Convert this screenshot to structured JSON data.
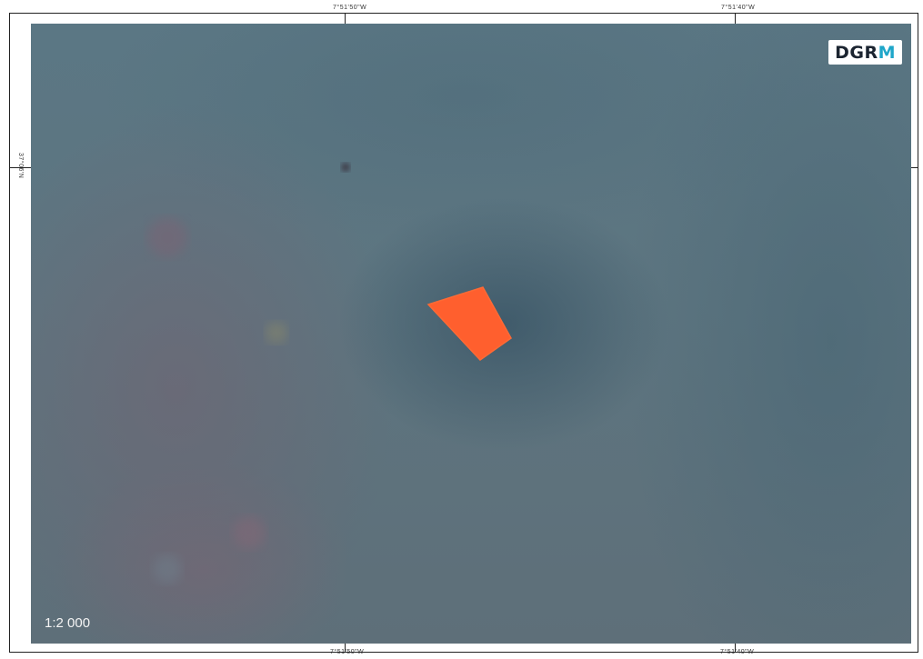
{
  "logo": {
    "text_main": "DGR",
    "text_accent": "M"
  },
  "scale_label": "1:2 000",
  "coordinates": {
    "top_left": "7°51'50\"W",
    "top_right": "7°51'40\"W",
    "bottom_left": "7°51'50\"W",
    "bottom_right": "7°51'40\"W",
    "left": "37°06'N"
  },
  "parcel": {
    "fill_color": "#ff5f2e"
  },
  "colors": {
    "imagery_base": "#5d7580",
    "logo_accent": "#1fa6c9"
  }
}
